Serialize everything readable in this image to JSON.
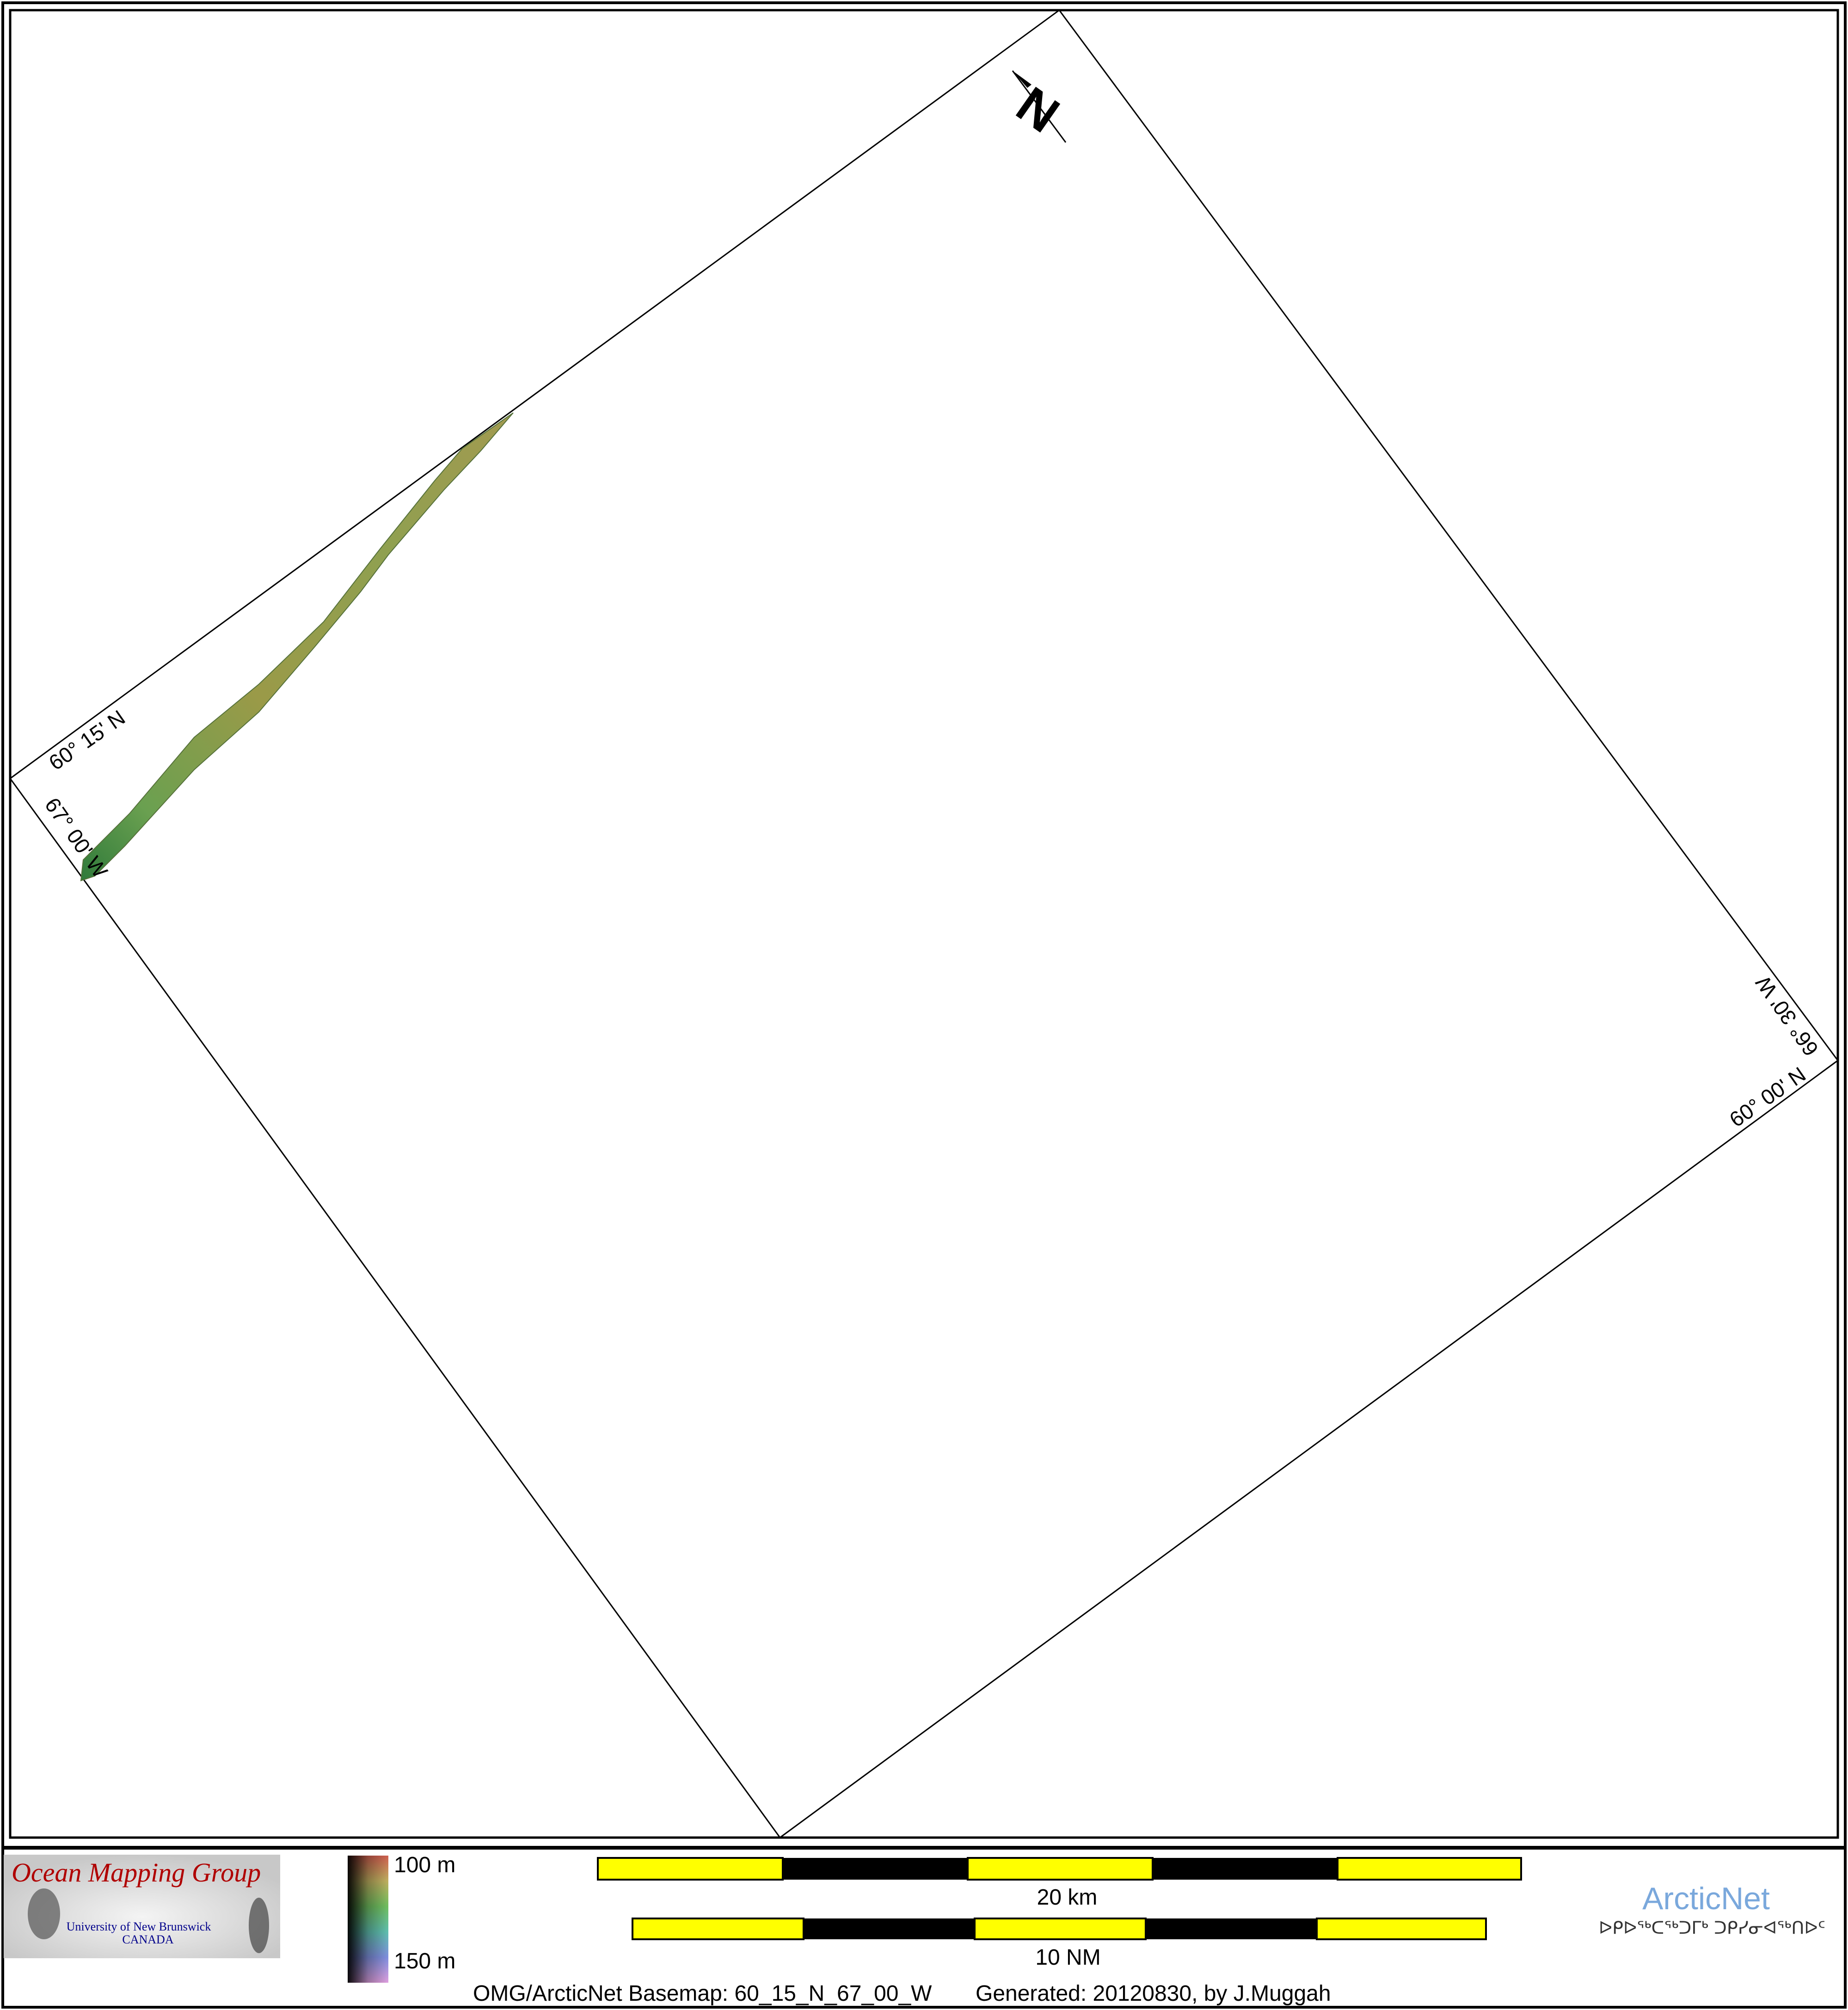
{
  "map": {
    "grid_labels": {
      "lat_top": "60° 15' N",
      "lon_left": "67° 00' W",
      "lon_right": "66° 30' W",
      "lat_bottom": "60° 00' N"
    },
    "north_arrow_label": "N"
  },
  "legend": {
    "logo_title": "Ocean Mapping Group",
    "logo_line1": "University of New Brunswick",
    "logo_line2": "CANADA",
    "depth_min": "100 m",
    "depth_max": "150 m",
    "scale_km_label": "20 km",
    "scale_nm_label": "10 NM",
    "arcticnet_name": "ArcticNet",
    "arcticnet_syllabics": "ᐅᑭᐅᖅᑕᖅᑐᒥᒃ ᑐᑭᓯᓂᐊᖅᑎᐅᑦ",
    "footer_basemap": "OMG/ArcticNet Basemap: 60_15_N_67_00_W",
    "footer_generated": "Generated: 20120830, by J.Muggah"
  },
  "colors": {
    "scale_yellow": "#ffff00",
    "scale_black": "#000000",
    "omg_red": "#b00000",
    "unb_blue": "#00008b",
    "arcticnet_blue": "#7aa8dc"
  }
}
